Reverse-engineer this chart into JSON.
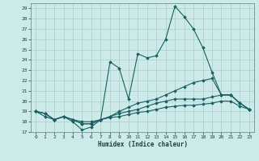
{
  "xlabel": "Humidex (Indice chaleur)",
  "background_color": "#cceae8",
  "grid_color": "#aacccc",
  "line_color": "#1a6060",
  "xlim": [
    -0.5,
    23.5
  ],
  "ylim": [
    17,
    29.5
  ],
  "yticks": [
    17,
    18,
    19,
    20,
    21,
    22,
    23,
    24,
    25,
    26,
    27,
    28,
    29
  ],
  "xticks": [
    0,
    1,
    2,
    3,
    4,
    5,
    6,
    7,
    8,
    9,
    10,
    11,
    12,
    13,
    14,
    15,
    16,
    17,
    18,
    19,
    20,
    21,
    22,
    23
  ],
  "series": [
    [
      19,
      18.5,
      18.2,
      18.5,
      18.0,
      17.2,
      17.5,
      18.2,
      23.8,
      23.2,
      20.2,
      24.6,
      24.2,
      24.4,
      26.0,
      29.2,
      28.2,
      27.0,
      25.2,
      22.8,
      20.6,
      20.6,
      19.8,
      19.2
    ],
    [
      19,
      18.8,
      18.2,
      18.5,
      18.2,
      17.8,
      17.8,
      18.2,
      18.5,
      19.0,
      19.4,
      19.8,
      20.0,
      20.2,
      20.6,
      21.0,
      21.4,
      21.8,
      22.0,
      22.2,
      20.6,
      20.6,
      19.8,
      19.2
    ],
    [
      19,
      18.8,
      18.2,
      18.5,
      18.2,
      17.8,
      17.8,
      18.2,
      18.5,
      18.8,
      19.0,
      19.2,
      19.5,
      19.8,
      20.0,
      20.2,
      20.2,
      20.2,
      20.2,
      20.4,
      20.6,
      20.6,
      19.8,
      19.2
    ],
    [
      19,
      18.8,
      18.2,
      18.5,
      18.2,
      18.0,
      18.0,
      18.2,
      18.4,
      18.5,
      18.7,
      18.9,
      19.0,
      19.2,
      19.4,
      19.5,
      19.6,
      19.6,
      19.7,
      19.8,
      20.0,
      20.0,
      19.5,
      19.2
    ]
  ]
}
